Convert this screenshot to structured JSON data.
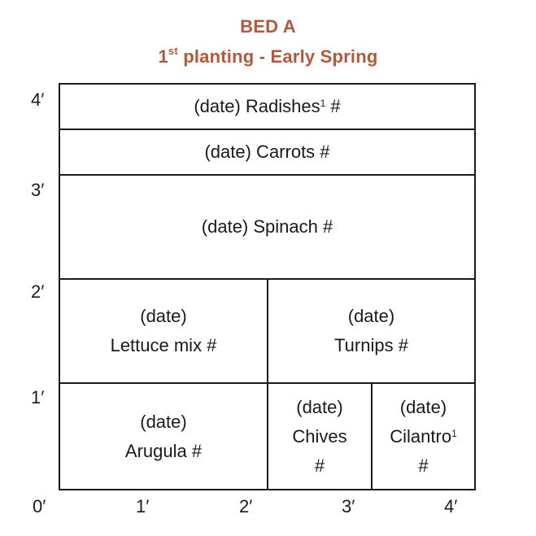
{
  "title": {
    "line1": "BED A",
    "line2_number": "1",
    "line2_sup": "st",
    "line2_rest": " planting - Early Spring"
  },
  "axes": {
    "y_labels": [
      "4′",
      "3′",
      "2′",
      "1′"
    ],
    "x_labels": [
      "0′",
      "1′",
      "2′",
      "3′",
      "4′"
    ]
  },
  "plantings": {
    "radishes": {
      "text": "(date) Radishes",
      "sup": "1",
      "suffix": " #"
    },
    "carrots": {
      "text": "(date) Carrots #"
    },
    "spinach": {
      "text": "(date) Spinach #"
    },
    "lettuce": {
      "line1": "(date)",
      "line2": "Lettuce mix #"
    },
    "turnips": {
      "line1": "(date)",
      "line2": "Turnips #"
    },
    "arugula": {
      "line1": "(date)",
      "line2": "Arugula #"
    },
    "chives": {
      "line1": "(date)",
      "line2": "Chives",
      "line3": "#"
    },
    "cilantro": {
      "line1": "(date)",
      "line2": "Cilantro",
      "line2_sup": "1",
      "line3": "#"
    }
  },
  "colors": {
    "title": "#b5573a",
    "lines": "#1a1a1a"
  }
}
